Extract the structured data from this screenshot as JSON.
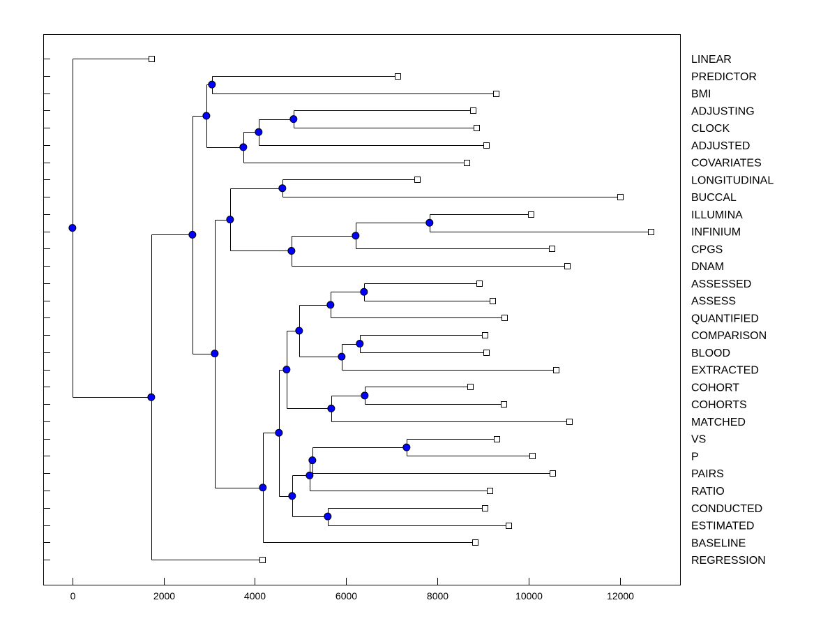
{
  "chart_data": {
    "type": "dendrogram",
    "title": "",
    "xlabel": "",
    "ylabel": "",
    "xlim": [
      -640,
      13320
    ],
    "xticks": [
      0,
      2000,
      4000,
      6000,
      8000,
      10000,
      12000
    ],
    "grid": false,
    "colors": {
      "node": "#0000ff",
      "line": "#000000",
      "leaf_fill": "#ffffff"
    },
    "tree": {
      "h": 0,
      "children": [
        {
          "label": "LINEAR",
          "h": 1728
        },
        {
          "h": 1728,
          "children": [
            {
              "h": 2630,
              "children": [
                {
                  "h": 2936,
                  "children": [
                    {
                      "h": 3058,
                      "children": [
                        {
                          "label": "PREDICTOR",
                          "h": 7125
                        },
                        {
                          "label": "BMI",
                          "h": 9281
                        }
                      ]
                    },
                    {
                      "h": 3746,
                      "children": [
                        {
                          "h": 4082,
                          "children": [
                            {
                              "h": 4847,
                              "children": [
                                {
                                  "label": "ADJUSTING",
                                  "h": 8777
                                },
                                {
                                  "label": "CLOCK",
                                  "h": 8853
                                }
                              ]
                            },
                            {
                              "label": "ADJUSTED",
                              "h": 9067
                            }
                          ]
                        },
                        {
                          "label": "COVARIATES",
                          "h": 8639
                        }
                      ]
                    }
                  ]
                },
                {
                  "h": 3119,
                  "children": [
                    {
                      "h": 3456,
                      "children": [
                        {
                          "h": 4602,
                          "children": [
                            {
                              "label": "LONGITUDINAL",
                              "h": 7553
                            },
                            {
                              "label": "BUCCAL",
                              "h": 12003
                            }
                          ]
                        },
                        {
                          "h": 4801,
                          "children": [
                            {
                              "h": 6208,
                              "children": [
                                {
                                  "h": 7828,
                                  "children": [
                                    {
                                      "label": "ILLUMINA",
                                      "h": 10045
                                    },
                                    {
                                      "label": "INFINIUM",
                                      "h": 12675
                                    }
                                  ]
                                },
                                {
                                  "label": "CPGS",
                                  "h": 10504
                                }
                              ]
                            },
                            {
                              "label": "DNAM",
                              "h": 10841
                            }
                          ]
                        }
                      ]
                    },
                    {
                      "h": 4174,
                      "children": [
                        {
                          "h": 4526,
                          "children": [
                            {
                              "h": 4694,
                              "children": [
                                {
                                  "h": 4969,
                                  "children": [
                                    {
                                      "h": 5657,
                                      "children": [
                                        {
                                          "h": 6391,
                                          "children": [
                                            {
                                              "label": "ASSESSED",
                                              "h": 8914
                                            },
                                            {
                                              "label": "ASSESS",
                                              "h": 9205
                                            }
                                          ]
                                        },
                                        {
                                          "label": "QUANTIFIED",
                                          "h": 9465
                                        }
                                      ]
                                    },
                                    {
                                      "h": 5902,
                                      "children": [
                                        {
                                          "h": 6299,
                                          "children": [
                                            {
                                              "label": "COMPARISON",
                                              "h": 9037
                                            },
                                            {
                                              "label": "BLOOD",
                                              "h": 9067
                                            }
                                          ]
                                        },
                                        {
                                          "label": "EXTRACTED",
                                          "h": 10596
                                        }
                                      ]
                                    }
                                  ]
                                },
                                {
                                  "h": 5673,
                                  "children": [
                                    {
                                      "h": 6407,
                                      "children": [
                                        {
                                          "label": "COHORT",
                                          "h": 8715
                                        },
                                        {
                                          "label": "COHORTS",
                                          "h": 9449
                                        }
                                      ]
                                    },
                                    {
                                      "label": "MATCHED",
                                      "h": 10886
                                    }
                                  ]
                                }
                              ]
                            },
                            {
                              "h": 4816,
                              "children": [
                                {
                                  "h": 5199,
                                  "children": [
                                    {
                                      "h": 5260,
                                      "children": [
                                        {
                                          "h": 7324,
                                          "children": [
                                            {
                                              "label": "VS",
                                              "h": 9296
                                            },
                                            {
                                              "label": "P",
                                              "h": 10076
                                            }
                                          ]
                                        },
                                        {
                                          "label": "PAIRS",
                                          "h": 10519
                                        }
                                      ]
                                    },
                                    {
                                      "label": "RATIO",
                                      "h": 9143
                                    }
                                  ]
                                },
                                {
                                  "h": 5596,
                                  "children": [
                                    {
                                      "label": "CONDUCTED",
                                      "h": 9037
                                    },
                                    {
                                      "label": "ESTIMATED",
                                      "h": 9556
                                    }
                                  ]
                                }
                              ]
                            }
                          ]
                        },
                        {
                          "label": "BASELINE",
                          "h": 8822
                        }
                      ]
                    }
                  ]
                }
              ]
            },
            {
              "label": "REGRESSION",
              "h": 4159
            }
          ]
        }
      ]
    }
  }
}
